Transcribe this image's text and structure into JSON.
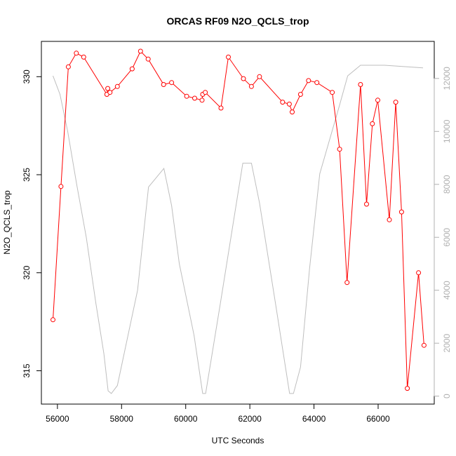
{
  "chart_data": {
    "type": "line",
    "title": "ORCAS RF09 N2O_QCLS_trop",
    "xlabel": "UTC Seconds",
    "ylabel": "N2O_QCLS_trop",
    "xlim": [
      55500,
      67750
    ],
    "ylim": [
      313.3,
      331.8
    ],
    "y2lim": [
      -300,
      13400
    ],
    "x_ticks": [
      56000,
      58000,
      60000,
      62000,
      64000,
      66000
    ],
    "x_tick_labels": [
      "56000",
      "58000",
      "60000",
      "62000",
      "64000",
      "66000"
    ],
    "y_ticks": [
      315,
      320,
      325,
      330
    ],
    "y_tick_labels": [
      "315",
      "320",
      "325",
      "330"
    ],
    "y2_ticks": [
      0,
      2000,
      4000,
      6000,
      8000,
      10000,
      12000
    ],
    "y2_tick_labels": [
      "0",
      "2000",
      "4000",
      "6000",
      "8000",
      "10000",
      "12000"
    ],
    "colors": {
      "series": "#ff0000",
      "altitude": "#bebebe",
      "axis": "#000000",
      "right_axis": "#b0b0b0"
    },
    "series": [
      {
        "x": [
          55860,
          56110,
          56340,
          56590,
          56820,
          57540,
          57570,
          57640,
          57870,
          58330,
          58590,
          58830,
          59310,
          59560,
          60030,
          60280,
          60510,
          60530,
          60610,
          61100,
          61330,
          61800,
          62050,
          62300,
          63020,
          63230,
          63320,
          63580,
          63830,
          64090,
          64570,
          64800,
          65030,
          65450,
          65640,
          65820,
          65990,
          66350,
          66550,
          66730,
          66910,
          67260,
          67430
        ],
        "y": [
          317.6,
          324.4,
          330.5,
          331.2,
          331.0,
          329.1,
          329.4,
          329.2,
          329.5,
          330.4,
          331.3,
          330.9,
          329.6,
          329.7,
          329.0,
          328.9,
          328.8,
          329.1,
          329.2,
          328.4,
          331.0,
          329.9,
          329.5,
          330.0,
          328.7,
          328.6,
          328.2,
          329.1,
          329.8,
          329.7,
          329.2,
          326.3,
          319.5,
          329.6,
          323.5,
          327.6,
          328.8,
          322.7,
          328.7,
          323.1,
          314.1,
          320.0,
          316.3
        ]
      },
      {
        "x": [
          55860,
          56080,
          56320,
          56600,
          56900,
          57200,
          57450,
          57580,
          57680,
          57870,
          58500,
          58840,
          59320,
          59560,
          59800,
          60260,
          60530,
          60620,
          61080,
          61780,
          62050,
          62300,
          62800,
          63240,
          63360,
          63580,
          63860,
          64180,
          64800,
          65050,
          65450,
          65800,
          66200,
          66800,
          67400
        ],
        "y": [
          12100,
          11400,
          10000,
          8000,
          6000,
          3500,
          1600,
          200,
          100,
          400,
          4000,
          7900,
          8600,
          7200,
          5000,
          2300,
          100,
          100,
          3500,
          8800,
          8800,
          7300,
          3500,
          100,
          100,
          1100,
          4800,
          8400,
          11000,
          12100,
          12500,
          12500,
          12500,
          12450,
          12400
        ]
      }
    ]
  }
}
